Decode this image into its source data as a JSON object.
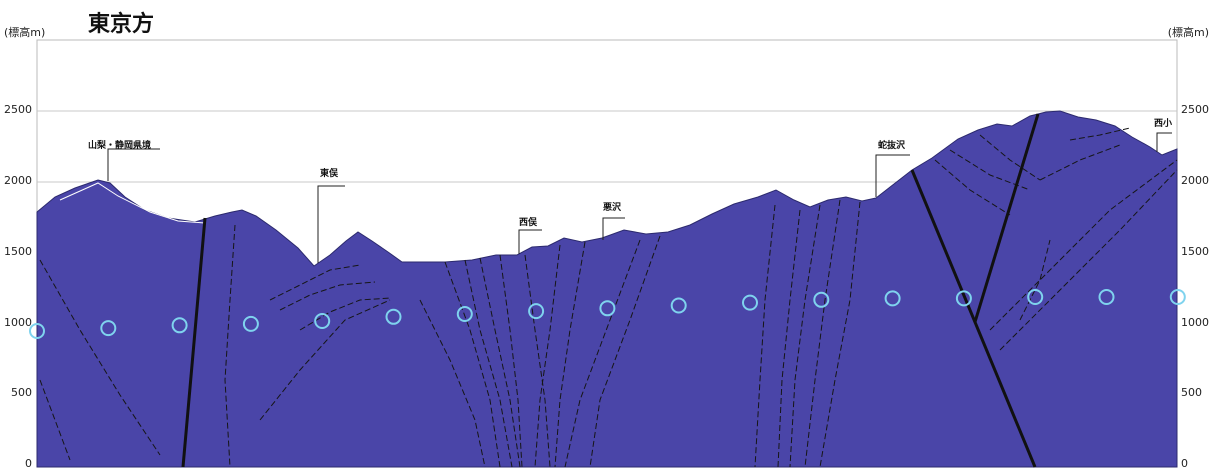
{
  "title": "東京方",
  "axis_unit_left": "(標高m)",
  "axis_unit_right": "(標高m)",
  "y_ticks": [
    "0",
    "500",
    "1000",
    "1500",
    "2000",
    "2500"
  ],
  "place_labels": {
    "yamanashi_shizuoka_border": "山梨・静岡県境",
    "higashimata": "東俣",
    "nishimata": "西俣",
    "warusawa": "悪沢",
    "hebinukesawa": "蛇抜沢",
    "nishi_cut": "西小"
  },
  "colors": {
    "rock": "#4a45a8",
    "tunnel_marker": "#7fd3ee",
    "fault_line": "#111111",
    "grid": "#cccccc"
  },
  "tunnel_elevations": [
    960,
    980,
    1000,
    1010,
    1030,
    1060,
    1080,
    1100,
    1120,
    1140,
    1160,
    1180,
    1190,
    1190,
    1200,
    1200,
    1200
  ]
}
